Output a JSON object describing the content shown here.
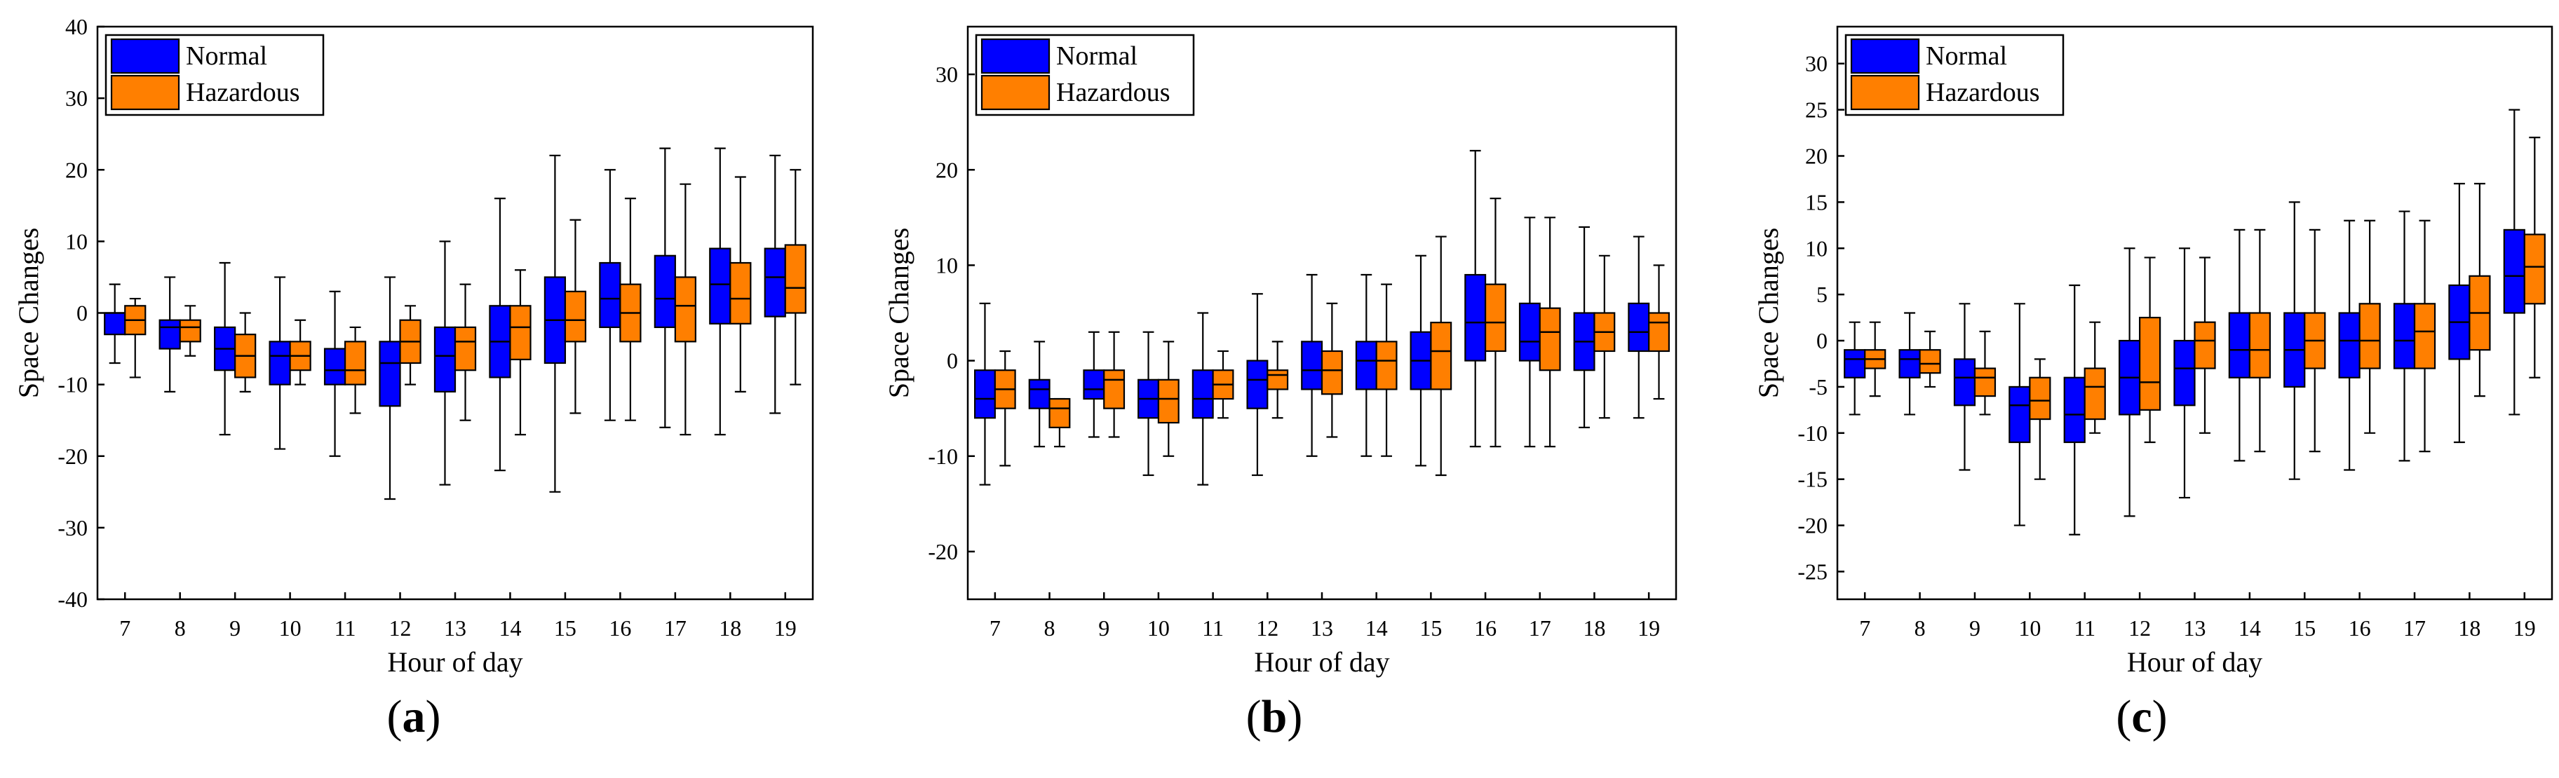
{
  "colors": {
    "normal": "#0000ff",
    "hazardous": "#ff7f00",
    "axis": "#000000"
  },
  "panels": [
    {
      "label": "a",
      "caption_open": "(",
      "caption_close": ")"
    },
    {
      "label": "b",
      "caption_open": "(",
      "caption_close": ")"
    },
    {
      "label": "c",
      "caption_open": "(",
      "caption_close": ")"
    }
  ],
  "chart_data": [
    {
      "type": "box",
      "title": "",
      "xlabel": "Hour of day",
      "ylabel": "Space Changes",
      "categories": [
        "7",
        "8",
        "9",
        "10",
        "11",
        "12",
        "13",
        "14",
        "15",
        "16",
        "17",
        "18",
        "19"
      ],
      "ylim": [
        -40,
        40
      ],
      "yticks": [
        -40,
        -30,
        -20,
        -10,
        0,
        10,
        20,
        30,
        40
      ],
      "legend": {
        "position": "top-left",
        "entries": [
          "Normal",
          "Hazardous"
        ]
      },
      "series": [
        {
          "name": "Normal",
          "boxes": [
            [
              -7,
              -3,
              0,
              0,
              4
            ],
            [
              -11,
              -5,
              -2,
              -1,
              5
            ],
            [
              -17,
              -8,
              -5,
              -2,
              7
            ],
            [
              -19,
              -10,
              -6,
              -4,
              5
            ],
            [
              -20,
              -10,
              -8,
              -5,
              3
            ],
            [
              -26,
              -13,
              -7,
              -4,
              5
            ],
            [
              -24,
              -11,
              -6,
              -2,
              10
            ],
            [
              -22,
              -9,
              -4,
              1,
              16
            ],
            [
              -25,
              -7,
              -1,
              5,
              22
            ],
            [
              -15,
              -2,
              2,
              7,
              20
            ],
            [
              -16,
              -2,
              2,
              8,
              23
            ],
            [
              -17,
              -1.5,
              4,
              9,
              23
            ],
            [
              -14,
              -0.5,
              5,
              9,
              22
            ]
          ]
        },
        {
          "name": "Hazardous",
          "boxes": [
            [
              -9,
              -3,
              -1,
              1,
              2
            ],
            [
              -6,
              -4,
              -2,
              -1,
              1
            ],
            [
              -11,
              -9,
              -6,
              -3,
              0
            ],
            [
              -10,
              -8,
              -6,
              -4,
              -1
            ],
            [
              -14,
              -10,
              -8,
              -4,
              -2
            ],
            [
              -10,
              -7,
              -4,
              -1,
              1
            ],
            [
              -15,
              -8,
              -4,
              -2,
              4
            ],
            [
              -17,
              -6.5,
              -2,
              1,
              6
            ],
            [
              -14,
              -4,
              -1,
              3,
              13
            ],
            [
              -15,
              -4,
              0,
              4,
              16
            ],
            [
              -17,
              -4,
              1,
              5,
              18
            ],
            [
              -11,
              -1.5,
              2,
              7,
              19
            ],
            [
              -10,
              0,
              3.5,
              9.5,
              20
            ]
          ]
        }
      ]
    },
    {
      "type": "box",
      "title": "",
      "xlabel": "Hour of day",
      "ylabel": "Space Changes",
      "categories": [
        "7",
        "8",
        "9",
        "10",
        "11",
        "12",
        "13",
        "14",
        "15",
        "16",
        "17",
        "18",
        "19"
      ],
      "ylim": [
        -25,
        35
      ],
      "yticks": [
        -20,
        -10,
        0,
        10,
        20,
        30
      ],
      "legend": {
        "position": "top-left",
        "entries": [
          "Normal",
          "Hazardous"
        ]
      },
      "series": [
        {
          "name": "Normal",
          "boxes": [
            [
              -13,
              -6,
              -4,
              -1,
              6
            ],
            [
              -9,
              -5,
              -3,
              -2,
              2
            ],
            [
              -8,
              -4,
              -3,
              -1,
              3
            ],
            [
              -12,
              -6,
              -4,
              -2,
              3
            ],
            [
              -13,
              -6,
              -4,
              -1,
              5
            ],
            [
              -12,
              -5,
              -2,
              0,
              7
            ],
            [
              -10,
              -3,
              -1,
              2,
              9
            ],
            [
              -10,
              -3,
              0,
              2,
              9
            ],
            [
              -11,
              -3,
              0,
              3,
              11
            ],
            [
              -9,
              0,
              4,
              9,
              22
            ],
            [
              -9,
              0,
              2,
              6,
              15
            ],
            [
              -7,
              -1,
              2,
              5,
              14
            ],
            [
              -6,
              1,
              3,
              6,
              13
            ]
          ]
        },
        {
          "name": "Hazardous",
          "boxes": [
            [
              -11,
              -5,
              -3,
              -1,
              1
            ],
            [
              -9,
              -7,
              -5,
              -4,
              -4
            ],
            [
              -8,
              -5,
              -2,
              -1,
              3
            ],
            [
              -10,
              -6.5,
              -4,
              -2,
              2
            ],
            [
              -6,
              -4,
              -2.5,
              -1,
              1
            ],
            [
              -6,
              -3,
              -1.5,
              -1,
              2
            ],
            [
              -8,
              -3.5,
              -1,
              1,
              6
            ],
            [
              -10,
              -3,
              0,
              2,
              8
            ],
            [
              -12,
              -3,
              1,
              4,
              13
            ],
            [
              -9,
              1,
              4,
              8,
              17
            ],
            [
              -9,
              -1,
              3,
              5.5,
              15
            ],
            [
              -6,
              1,
              3,
              5,
              11
            ],
            [
              -4,
              1,
              4,
              5,
              10
            ]
          ]
        }
      ]
    },
    {
      "type": "box",
      "title": "",
      "xlabel": "Hour of day",
      "ylabel": "Space Changes",
      "categories": [
        "7",
        "8",
        "9",
        "10",
        "11",
        "12",
        "13",
        "14",
        "15",
        "16",
        "17",
        "18",
        "19"
      ],
      "ylim": [
        -28,
        34
      ],
      "yticks": [
        -25,
        -20,
        -15,
        -10,
        -5,
        0,
        5,
        10,
        15,
        20,
        25,
        30
      ],
      "legend": {
        "position": "top-left",
        "entries": [
          "Normal",
          "Hazardous"
        ]
      },
      "series": [
        {
          "name": "Normal",
          "boxes": [
            [
              -8,
              -4,
              -2,
              -1,
              2
            ],
            [
              -8,
              -4,
              -2,
              -1,
              3
            ],
            [
              -14,
              -7,
              -4,
              -2,
              4
            ],
            [
              -20,
              -11,
              -7,
              -5,
              4
            ],
            [
              -21,
              -11,
              -8,
              -4,
              6
            ],
            [
              -19,
              -8,
              -4,
              0,
              10
            ],
            [
              -17,
              -7,
              -3,
              0,
              10
            ],
            [
              -13,
              -4,
              -1,
              3,
              12
            ],
            [
              -15,
              -5,
              -1,
              3,
              15
            ],
            [
              -14,
              -4,
              0,
              3,
              13
            ],
            [
              -13,
              -3,
              0,
              4,
              14
            ],
            [
              -11,
              -2,
              2,
              6,
              17
            ],
            [
              -8,
              3,
              7,
              12,
              25
            ]
          ]
        },
        {
          "name": "Hazardous",
          "boxes": [
            [
              -6,
              -3,
              -2,
              -1,
              2
            ],
            [
              -5,
              -3.5,
              -2.5,
              -1,
              1
            ],
            [
              -8,
              -6,
              -4,
              -3,
              1
            ],
            [
              -15,
              -8.5,
              -6.5,
              -4,
              -2
            ],
            [
              -10,
              -8.5,
              -5,
              -3,
              2
            ],
            [
              -11,
              -7.5,
              -4.5,
              2.5,
              9
            ],
            [
              -10,
              -3,
              0,
              2,
              9
            ],
            [
              -12,
              -4,
              -1,
              3,
              12
            ],
            [
              -12,
              -3,
              0,
              3,
              12
            ],
            [
              -10,
              -3,
              0,
              4,
              13
            ],
            [
              -12,
              -3,
              1,
              4,
              13
            ],
            [
              -6,
              -1,
              3,
              7,
              17
            ],
            [
              -4,
              4,
              8,
              11.5,
              22
            ]
          ]
        }
      ]
    }
  ]
}
